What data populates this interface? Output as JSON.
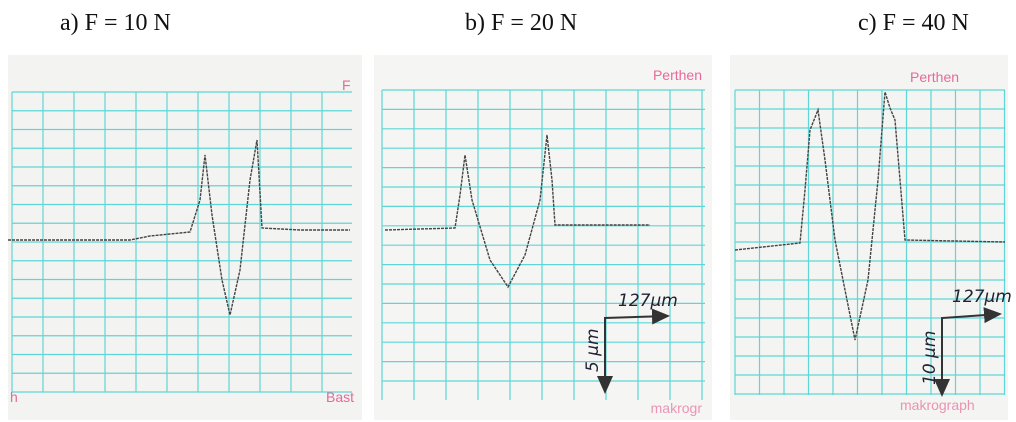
{
  "panels": [
    {
      "caption": "a) F = 10 N",
      "top_right": "F",
      "bottom_left": "h",
      "bottom_right": "Bast"
    },
    {
      "caption": "b) F = 20 N",
      "top_right": "Perthen",
      "bottom_right": "makrogr",
      "x_scale": "127µm",
      "y_scale": "5 µm"
    },
    {
      "caption": "c) F = 40 N",
      "top_right": "Perthen",
      "bottom_right": "makrograph",
      "x_scale": "127µm",
      "y_scale": "10 µm"
    }
  ]
}
